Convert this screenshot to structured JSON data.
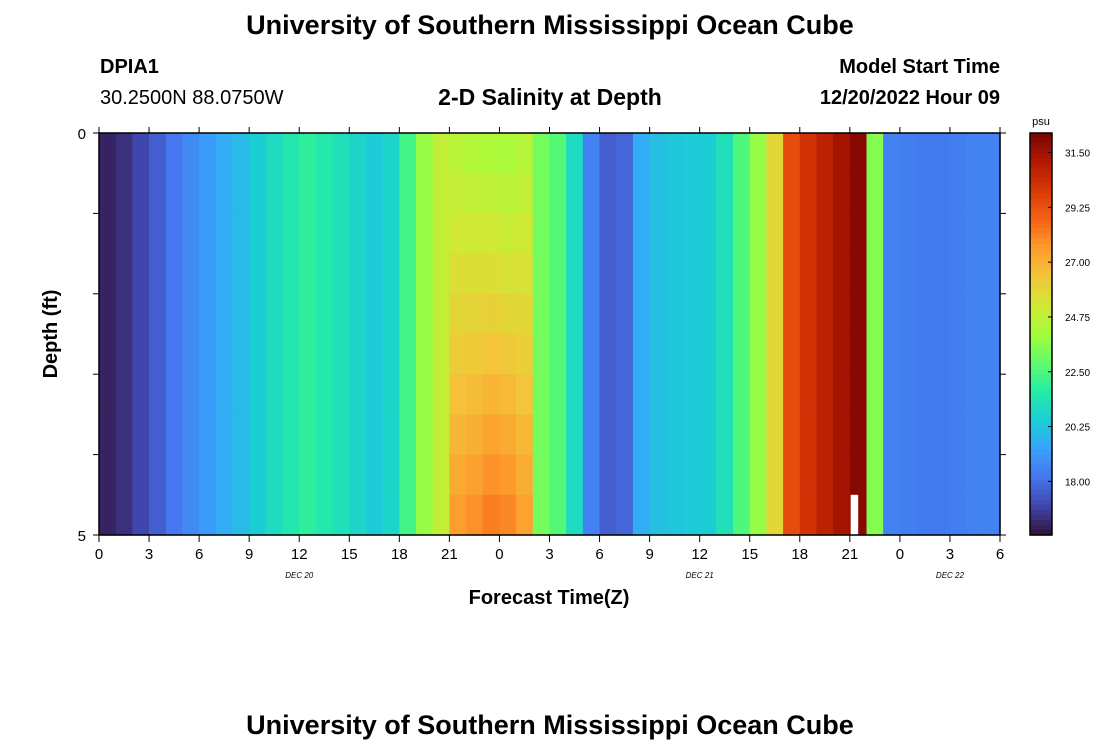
{
  "page": {
    "title": "University of Southern Mississippi Ocean Cube",
    "footer_title": "University of Southern Mississippi Ocean Cube",
    "station_id": "DPIA1",
    "station_coords": "30.2500N  88.0750W",
    "plot_title": "2-D Salinity at Depth",
    "model_start_label": "Model Start Time",
    "model_start_value": "12/20/2022 Hour 09"
  },
  "chart_data": {
    "type": "heatmap",
    "title": "2-D Salinity at Depth",
    "xlabel": "Forecast Time(Z)",
    "ylabel": "Depth (ft)",
    "x_tick_labels": [
      "0",
      "3",
      "6",
      "9",
      "12",
      "15",
      "18",
      "21",
      "0",
      "3",
      "6",
      "9",
      "12",
      "15",
      "18",
      "21",
      "0",
      "3",
      "6"
    ],
    "x_day_labels": [
      {
        "label": "DEC 20",
        "hour": 12
      },
      {
        "label": "DEC 21",
        "hour": 36
      },
      {
        "label": "DEC 22",
        "hour": 51
      }
    ],
    "xlim_hours": [
      0,
      54
    ],
    "ylim_ft": [
      0,
      5
    ],
    "y_tick_labels": [
      "0",
      "5"
    ],
    "colorbar": {
      "unit": "psu",
      "min": 15.8,
      "max": 32.3,
      "ticks": [
        "31.50",
        "29.25",
        "27.00",
        "24.75",
        "22.50",
        "20.25",
        "18.00"
      ],
      "tick_values": [
        31.5,
        29.25,
        27.0,
        24.75,
        22.5,
        20.25,
        18.0
      ],
      "colormap": [
        "#30123b",
        "#4145ab",
        "#4675ed",
        "#39a2fc",
        "#1bcfd4",
        "#24eca6",
        "#61fc6c",
        "#a4fc3b",
        "#d1e834",
        "#f3c63a",
        "#fe9b2d",
        "#f36315",
        "#d93806",
        "#b11901",
        "#7a0403"
      ]
    },
    "depth_rows_ft": [
      0.25,
      0.75,
      1.25,
      1.75,
      2.25,
      2.75,
      3.25,
      3.75,
      4.25,
      4.75
    ],
    "columns": [
      {
        "span": [
          0,
          6
        ],
        "values": [
          16.2,
          16.5,
          17.0,
          17.6,
          18.2,
          18.7
        ]
      },
      {
        "span": [
          6,
          13
        ],
        "values": [
          19.2,
          19.6,
          20.0,
          20.5,
          21.0,
          21.5,
          21.9
        ]
      },
      {
        "span": [
          13,
          18
        ],
        "values": [
          21.6,
          21.2,
          20.8,
          20.4,
          20.8
        ]
      },
      {
        "span": [
          18,
          19
        ],
        "values": [
          22.3
        ]
      },
      {
        "span": [
          19,
          20
        ],
        "values": [
          23.8
        ]
      },
      {
        "span": [
          20,
          21
        ],
        "values": [
          24.8
        ]
      },
      {
        "span": [
          21,
          26
        ],
        "values": [
          24.6,
          24.4,
          24.3,
          24.2,
          24.5
        ],
        "deep_values": [
          27.5,
          27.8,
          28.2,
          28.0,
          27.4
        ]
      },
      {
        "span": [
          26,
          28
        ],
        "values": [
          23.2,
          22.6
        ]
      },
      {
        "span": [
          28,
          29
        ],
        "values": [
          21.0
        ]
      },
      {
        "span": [
          29,
          32
        ],
        "values": [
          18.5,
          17.6,
          17.8
        ]
      },
      {
        "span": [
          32,
          37
        ],
        "values": [
          19.6,
          20.1,
          20.3,
          20.4,
          20.5
        ]
      },
      {
        "span": [
          37,
          40
        ],
        "values": [
          21.2,
          22.5,
          23.8
        ]
      },
      {
        "span": [
          40,
          41
        ],
        "values": [
          25.8
        ]
      },
      {
        "span": [
          41,
          46
        ],
        "values": [
          29.4,
          30.2,
          30.8,
          31.4,
          32.0
        ]
      },
      {
        "span": [
          46,
          47
        ],
        "values": [
          23.5
        ]
      },
      {
        "span": [
          47,
          54
        ],
        "values": [
          18.5,
          18.4,
          18.3,
          18.3,
          18.4,
          18.5,
          18.5
        ]
      }
    ],
    "notes": "Heatmap of salinity (psu) vs forecast hour (0-54 from 00Z Dec 20) and depth (0-5 ft). A blank (white) gap appears near hour 45 at 4.5-5 ft depth."
  }
}
